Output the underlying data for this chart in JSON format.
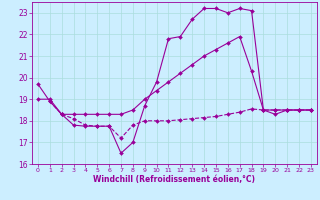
{
  "xlabel": "Windchill (Refroidissement éolien,°C)",
  "background_color": "#cceeff",
  "grid_color": "#aadddd",
  "line_color": "#990099",
  "xlim": [
    -0.5,
    23.5
  ],
  "ylim": [
    16.0,
    23.5
  ],
  "yticks": [
    16,
    17,
    18,
    19,
    20,
    21,
    22,
    23
  ],
  "xticks": [
    0,
    1,
    2,
    3,
    4,
    5,
    6,
    7,
    8,
    9,
    10,
    11,
    12,
    13,
    14,
    15,
    16,
    17,
    18,
    19,
    20,
    21,
    22,
    23
  ],
  "series1_x": [
    0,
    1,
    2,
    3,
    4,
    5,
    6,
    7,
    8,
    9,
    10,
    11,
    12,
    13,
    14,
    15,
    16,
    17,
    18,
    19,
    20,
    21,
    22,
    23
  ],
  "series1_y": [
    19.7,
    18.9,
    18.3,
    17.8,
    17.75,
    17.75,
    17.75,
    16.5,
    17.0,
    18.7,
    19.8,
    21.8,
    21.9,
    22.7,
    23.2,
    23.2,
    23.0,
    23.2,
    23.1,
    18.5,
    18.3,
    18.5,
    18.5,
    18.5
  ],
  "series2_x": [
    1,
    2,
    3,
    4,
    5,
    6,
    7,
    8,
    9,
    10,
    11,
    12,
    13,
    14,
    15,
    16,
    17,
    18,
    19,
    20,
    21,
    22,
    23
  ],
  "series2_y": [
    18.9,
    18.3,
    18.1,
    17.8,
    17.75,
    17.75,
    17.2,
    17.8,
    18.0,
    18.0,
    18.0,
    18.05,
    18.1,
    18.15,
    18.2,
    18.3,
    18.4,
    18.55,
    18.5,
    18.5,
    18.5,
    18.5,
    18.5
  ],
  "series3_x": [
    0,
    1,
    2,
    3,
    4,
    5,
    6,
    7,
    8,
    9,
    10,
    11,
    12,
    13,
    14,
    15,
    16,
    17,
    18,
    19,
    20,
    21,
    22,
    23
  ],
  "series3_y": [
    19.0,
    19.0,
    18.3,
    18.3,
    18.3,
    18.3,
    18.3,
    18.3,
    18.5,
    19.0,
    19.4,
    19.8,
    20.2,
    20.6,
    21.0,
    21.3,
    21.6,
    21.9,
    20.3,
    18.5,
    18.5,
    18.5,
    18.5,
    18.5
  ]
}
